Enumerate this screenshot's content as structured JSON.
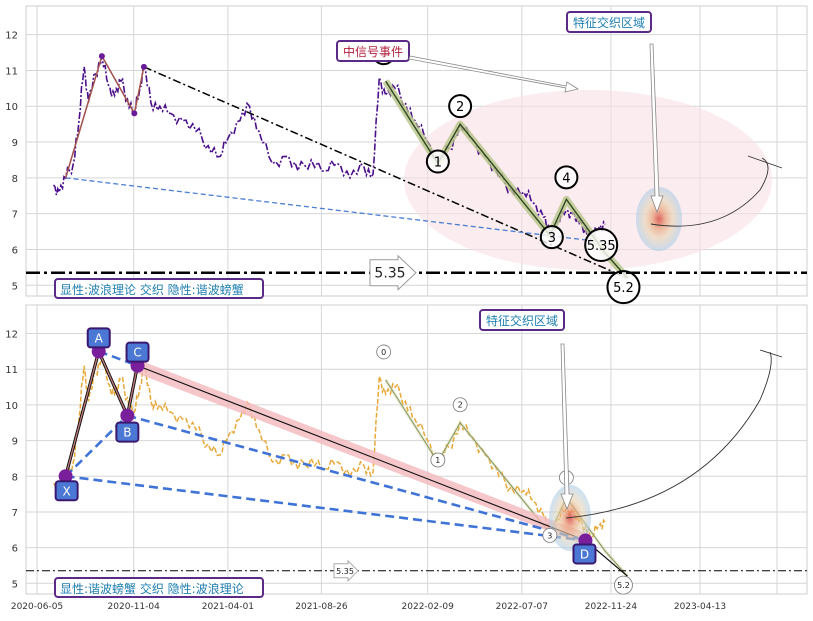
{
  "chart_data": [
    {
      "type": "line",
      "panel": "top",
      "ylim": [
        4.7,
        12.8
      ],
      "yticks": [
        5,
        6,
        7,
        8,
        9,
        10,
        11,
        12
      ],
      "grid": true,
      "hline": {
        "value": 5.35,
        "label": "5.35"
      },
      "annotations": {
        "mid_signal": "中信号事件",
        "feature_zone": "特征交织区域",
        "legend": "显性:波浪理论 交织 隐性:谐波螃蟹"
      },
      "price_series": [
        [
          "2020-07-01",
          7.8
        ],
        [
          "2020-07-10",
          7.6
        ],
        [
          "2020-07-20",
          8.0
        ],
        [
          "2020-08-01",
          8.4
        ],
        [
          "2020-08-10",
          9.6
        ],
        [
          "2020-08-18",
          11.1
        ],
        [
          "2020-08-25",
          10.1
        ],
        [
          "2020-09-05",
          10.9
        ],
        [
          "2020-09-15",
          11.4
        ],
        [
          "2020-09-25",
          10.6
        ],
        [
          "2020-10-05",
          10.3
        ],
        [
          "2020-10-15",
          10.7
        ],
        [
          "2020-10-25",
          10.2
        ],
        [
          "2020-11-05",
          9.8
        ],
        [
          "2020-11-12",
          10.3
        ],
        [
          "2020-11-20",
          11.1
        ],
        [
          "2020-12-01",
          10.1
        ],
        [
          "2020-12-15",
          10.0
        ],
        [
          "2021-01-01",
          9.8
        ],
        [
          "2021-01-20",
          9.6
        ],
        [
          "2021-02-10",
          9.3
        ],
        [
          "2021-03-01",
          8.9
        ],
        [
          "2021-03-20",
          8.6
        ],
        [
          "2021-04-01",
          9.1
        ],
        [
          "2021-04-20",
          9.6
        ],
        [
          "2021-05-05",
          10.0
        ],
        [
          "2021-05-20",
          9.3
        ],
        [
          "2021-06-10",
          8.4
        ],
        [
          "2021-07-01",
          8.6
        ],
        [
          "2021-07-20",
          8.2
        ],
        [
          "2021-08-10",
          8.5
        ],
        [
          "2021-09-01",
          8.2
        ],
        [
          "2021-09-20",
          8.4
        ],
        [
          "2021-10-10",
          8.0
        ],
        [
          "2021-11-01",
          8.3
        ],
        [
          "2021-11-15",
          8.1
        ],
        [
          "2021-11-25",
          10.8
        ],
        [
          "2021-12-05",
          10.3
        ],
        [
          "2021-12-20",
          10.5
        ],
        [
          "2022-01-05",
          10.1
        ],
        [
          "2022-01-20",
          9.6
        ],
        [
          "2022-02-09",
          9.0
        ],
        [
          "2022-02-25",
          8.4
        ],
        [
          "2022-03-15",
          8.8
        ],
        [
          "2022-04-01",
          9.5
        ],
        [
          "2022-04-20",
          9.1
        ],
        [
          "2022-05-10",
          8.6
        ],
        [
          "2022-06-01",
          8.0
        ],
        [
          "2022-06-20",
          7.7
        ],
        [
          "2022-07-10",
          7.6
        ],
        [
          "2022-07-25",
          7.3
        ],
        [
          "2022-08-10",
          6.9
        ],
        [
          "2022-08-20",
          6.4
        ],
        [
          "2022-09-01",
          6.8
        ],
        [
          "2022-09-15",
          7.1
        ],
        [
          "2022-09-25",
          7.0
        ],
        [
          "2022-10-05",
          6.7
        ],
        [
          "2022-10-15",
          6.6
        ],
        [
          "2022-10-25",
          6.3
        ],
        [
          "2022-11-05",
          6.6
        ],
        [
          "2022-11-15",
          6.7
        ]
      ],
      "wave_points": [
        {
          "label": "0",
          "date": "2021-12-05",
          "y": 10.7
        },
        {
          "label": "1",
          "date": "2022-02-25",
          "y": 8.4
        },
        {
          "label": "2",
          "date": "2022-04-01",
          "y": 9.5
        },
        {
          "label": "3",
          "date": "2022-08-20",
          "y": 6.4
        },
        {
          "label": "4",
          "date": "2022-09-15",
          "y": 7.4
        },
        {
          "label": "5.35",
          "date": "2022-11-15",
          "y": 5.9
        },
        {
          "label": "5.2",
          "date": "2022-12-20",
          "y": 5.2
        }
      ]
    },
    {
      "type": "line",
      "panel": "bottom",
      "ylim": [
        4.7,
        12.8
      ],
      "yticks": [
        5,
        6,
        7,
        8,
        9,
        10,
        11,
        12
      ],
      "xticks": [
        "2020-06-05",
        "2020-11-04",
        "2021-04-01",
        "2021-08-26",
        "2022-02-09",
        "2022-07-07",
        "2022-11-24",
        "2023-04-13"
      ],
      "grid": true,
      "hline": {
        "value": 5.35,
        "label": "5.35"
      },
      "annotations": {
        "feature_zone": "特征交织区域",
        "legend": "显性:谐波螃蟹 交织 隐性:波浪理论"
      },
      "harmonic_points": [
        {
          "label": "X",
          "date": "2020-07-20",
          "y": 8.0
        },
        {
          "label": "A",
          "date": "2020-09-10",
          "y": 11.5
        },
        {
          "label": "B",
          "date": "2020-10-25",
          "y": 9.7
        },
        {
          "label": "C",
          "date": "2020-11-10",
          "y": 11.1
        },
        {
          "label": "D",
          "date": "2022-10-15",
          "y": 6.2
        }
      ],
      "wave_labels": [
        "0",
        "1",
        "2",
        "3",
        "4",
        "5.2"
      ]
    }
  ]
}
